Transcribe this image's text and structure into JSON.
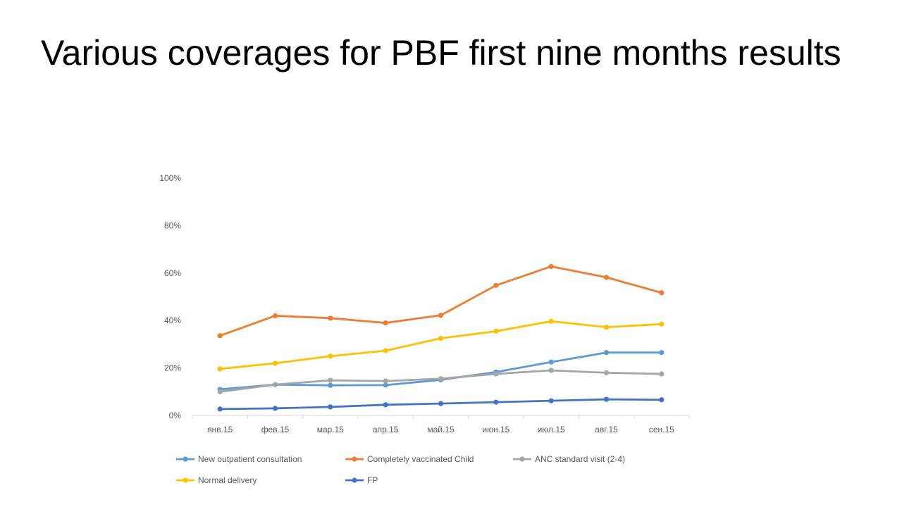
{
  "slide": {
    "title": "Various coverages for PBF first nine months results"
  },
  "chart_data": {
    "type": "line",
    "title": "",
    "xlabel": "",
    "ylabel": "",
    "categories": [
      "янв.15",
      "фев.15",
      "мар.15",
      "апр.15",
      "май.15",
      "июн.15",
      "июл.15",
      "авг.15",
      "сен.15"
    ],
    "y_ticks": [
      "0%",
      "20%",
      "40%",
      "60%",
      "80%",
      "100%"
    ],
    "ylim": [
      0,
      1
    ],
    "grid": false,
    "legend_position": "bottom",
    "series": [
      {
        "name": "New outpatient consultation",
        "color": "#5B9BD5",
        "values": [
          0.11,
          0.13,
          0.127,
          0.128,
          0.15,
          0.183,
          0.225,
          0.265,
          0.265
        ]
      },
      {
        "name": "Completely vaccinated Child",
        "color": "#ED7D31",
        "values": [
          0.336,
          0.42,
          0.41,
          0.39,
          0.422,
          0.548,
          0.628,
          0.582,
          0.517
        ]
      },
      {
        "name": "ANC standard visit (2-4)",
        "color": "#A5A5A5",
        "values": [
          0.1,
          0.13,
          0.148,
          0.145,
          0.155,
          0.175,
          0.19,
          0.18,
          0.175
        ]
      },
      {
        "name": "Normal delivery",
        "color": "#FFC000",
        "values": [
          0.196,
          0.22,
          0.25,
          0.273,
          0.325,
          0.355,
          0.397,
          0.372,
          0.385
        ]
      },
      {
        "name": "FP",
        "color": "#4472C4",
        "values": [
          0.027,
          0.03,
          0.036,
          0.045,
          0.05,
          0.056,
          0.062,
          0.068,
          0.066
        ]
      }
    ]
  }
}
